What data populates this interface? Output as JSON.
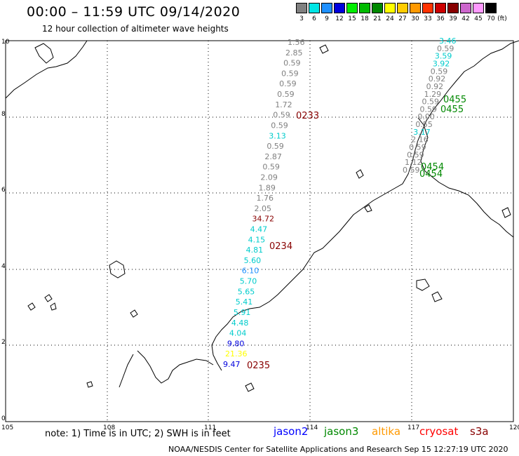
{
  "header": {
    "title": "00:00 – 11:59 UTC 09/14/2020",
    "subtitle": "12 hour collection of altimeter wave heights"
  },
  "legend": {
    "unit": "(ft)",
    "bins": [
      {
        "label": "3",
        "color": "#808080"
      },
      {
        "label": "6",
        "color": "#00e5e5"
      },
      {
        "label": "9",
        "color": "#1e90ff"
      },
      {
        "label": "12",
        "color": "#0000dd"
      },
      {
        "label": "15",
        "color": "#00ee00"
      },
      {
        "label": "18",
        "color": "#00bb00"
      },
      {
        "label": "21",
        "color": "#008800"
      },
      {
        "label": "24",
        "color": "#ffff00"
      },
      {
        "label": "27",
        "color": "#ffcc00"
      },
      {
        "label": "30",
        "color": "#ff9900"
      },
      {
        "label": "33",
        "color": "#ff3300"
      },
      {
        "label": "36",
        "color": "#cc0000"
      },
      {
        "label": "39",
        "color": "#880000"
      },
      {
        "label": "42",
        "color": "#cc66cc"
      },
      {
        "label": "45",
        "color": "#ff99ff"
      },
      {
        "label": "70",
        "color": "#000000"
      }
    ]
  },
  "map": {
    "lon_ticks": [
      "105",
      "108",
      "111",
      "114",
      "117",
      "120"
    ],
    "lat_ticks": [
      "0",
      "2",
      "4",
      "6",
      "8",
      "10"
    ],
    "track_west": [
      {
        "text": "1.56",
        "color": "#808080"
      },
      {
        "text": "2.85",
        "color": "#808080"
      },
      {
        "text": "0.59",
        "color": "#808080"
      },
      {
        "text": "0.59",
        "color": "#808080"
      },
      {
        "text": "0.59",
        "color": "#808080"
      },
      {
        "text": "0.59",
        "color": "#808080"
      },
      {
        "text": "1.72",
        "color": "#808080"
      },
      {
        "text": "0.59",
        "color": "#808080"
      },
      {
        "text": "0.59",
        "color": "#808080"
      },
      {
        "text": "3.13",
        "color": "#00cccc"
      },
      {
        "text": "0.59",
        "color": "#808080"
      },
      {
        "text": "2.87",
        "color": "#808080"
      },
      {
        "text": "0.59",
        "color": "#808080"
      },
      {
        "text": "2.09",
        "color": "#808080"
      },
      {
        "text": "1.89",
        "color": "#808080"
      },
      {
        "text": "1.76",
        "color": "#808080"
      },
      {
        "text": "2.05",
        "color": "#808080"
      },
      {
        "text": "34.72",
        "color": "#880000"
      },
      {
        "text": "4.47",
        "color": "#00cccc"
      },
      {
        "text": "4.15",
        "color": "#00cccc"
      },
      {
        "text": "4.81",
        "color": "#00cccc"
      },
      {
        "text": "5.60",
        "color": "#00cccc"
      },
      {
        "text": "6.10",
        "color": "#1e90ff"
      },
      {
        "text": "5.70",
        "color": "#00cccc"
      },
      {
        "text": "5.65",
        "color": "#00cccc"
      },
      {
        "text": "5.41",
        "color": "#00cccc"
      },
      {
        "text": "5.91",
        "color": "#00cccc"
      },
      {
        "text": "4.48",
        "color": "#00cccc"
      },
      {
        "text": "4.04",
        "color": "#00cccc"
      },
      {
        "text": "9.80",
        "color": "#0000dd"
      },
      {
        "text": "21.36",
        "color": "#ffff00"
      },
      {
        "text": "9.47",
        "color": "#0000dd"
      }
    ],
    "track_east": [
      {
        "text": "3.46",
        "color": "#00cccc"
      },
      {
        "text": "0.59",
        "color": "#808080"
      },
      {
        "text": "3.59",
        "color": "#00cccc"
      },
      {
        "text": "3.92",
        "color": "#00cccc"
      },
      {
        "text": "0.59",
        "color": "#808080"
      },
      {
        "text": "0.92",
        "color": "#808080"
      },
      {
        "text": "0.92",
        "color": "#808080"
      },
      {
        "text": "1.29",
        "color": "#808080"
      },
      {
        "text": "0.59",
        "color": "#808080"
      },
      {
        "text": "0.59",
        "color": "#808080"
      },
      {
        "text": "0.00",
        "color": "#808080"
      },
      {
        "text": "0.55",
        "color": "#808080"
      },
      {
        "text": "3.17",
        "color": "#00cccc"
      },
      {
        "text": "2.16",
        "color": "#808080"
      },
      {
        "text": "0.59",
        "color": "#808080"
      },
      {
        "text": "0.59",
        "color": "#808080"
      },
      {
        "text": "1.12",
        "color": "#808080"
      },
      {
        "text": "0.59",
        "color": "#808080"
      }
    ],
    "pass_times": [
      {
        "text": "0233",
        "color": "#880000"
      },
      {
        "text": "0234",
        "color": "#880000"
      },
      {
        "text": "0235",
        "color": "#880000"
      },
      {
        "text": "0455",
        "color": "#008800"
      },
      {
        "text": "0455",
        "color": "#008800"
      },
      {
        "text": "0454",
        "color": "#008800"
      },
      {
        "text": "0454",
        "color": "#008800"
      }
    ]
  },
  "footer": {
    "note": "note: 1) Time is in UTC; 2) SWH is in feet",
    "satellites": [
      {
        "label": "jason2",
        "color": "#0000ff"
      },
      {
        "label": "jason3",
        "color": "#008800"
      },
      {
        "label": "altika",
        "color": "#ff9900"
      },
      {
        "label": "cryosat",
        "color": "#ff0000"
      },
      {
        "label": "s3a",
        "color": "#880000"
      }
    ],
    "credit": "NOAA/NESDIS Center for Satellite Applications and Research   Sep 15 12:27:19 UTC 2020"
  }
}
